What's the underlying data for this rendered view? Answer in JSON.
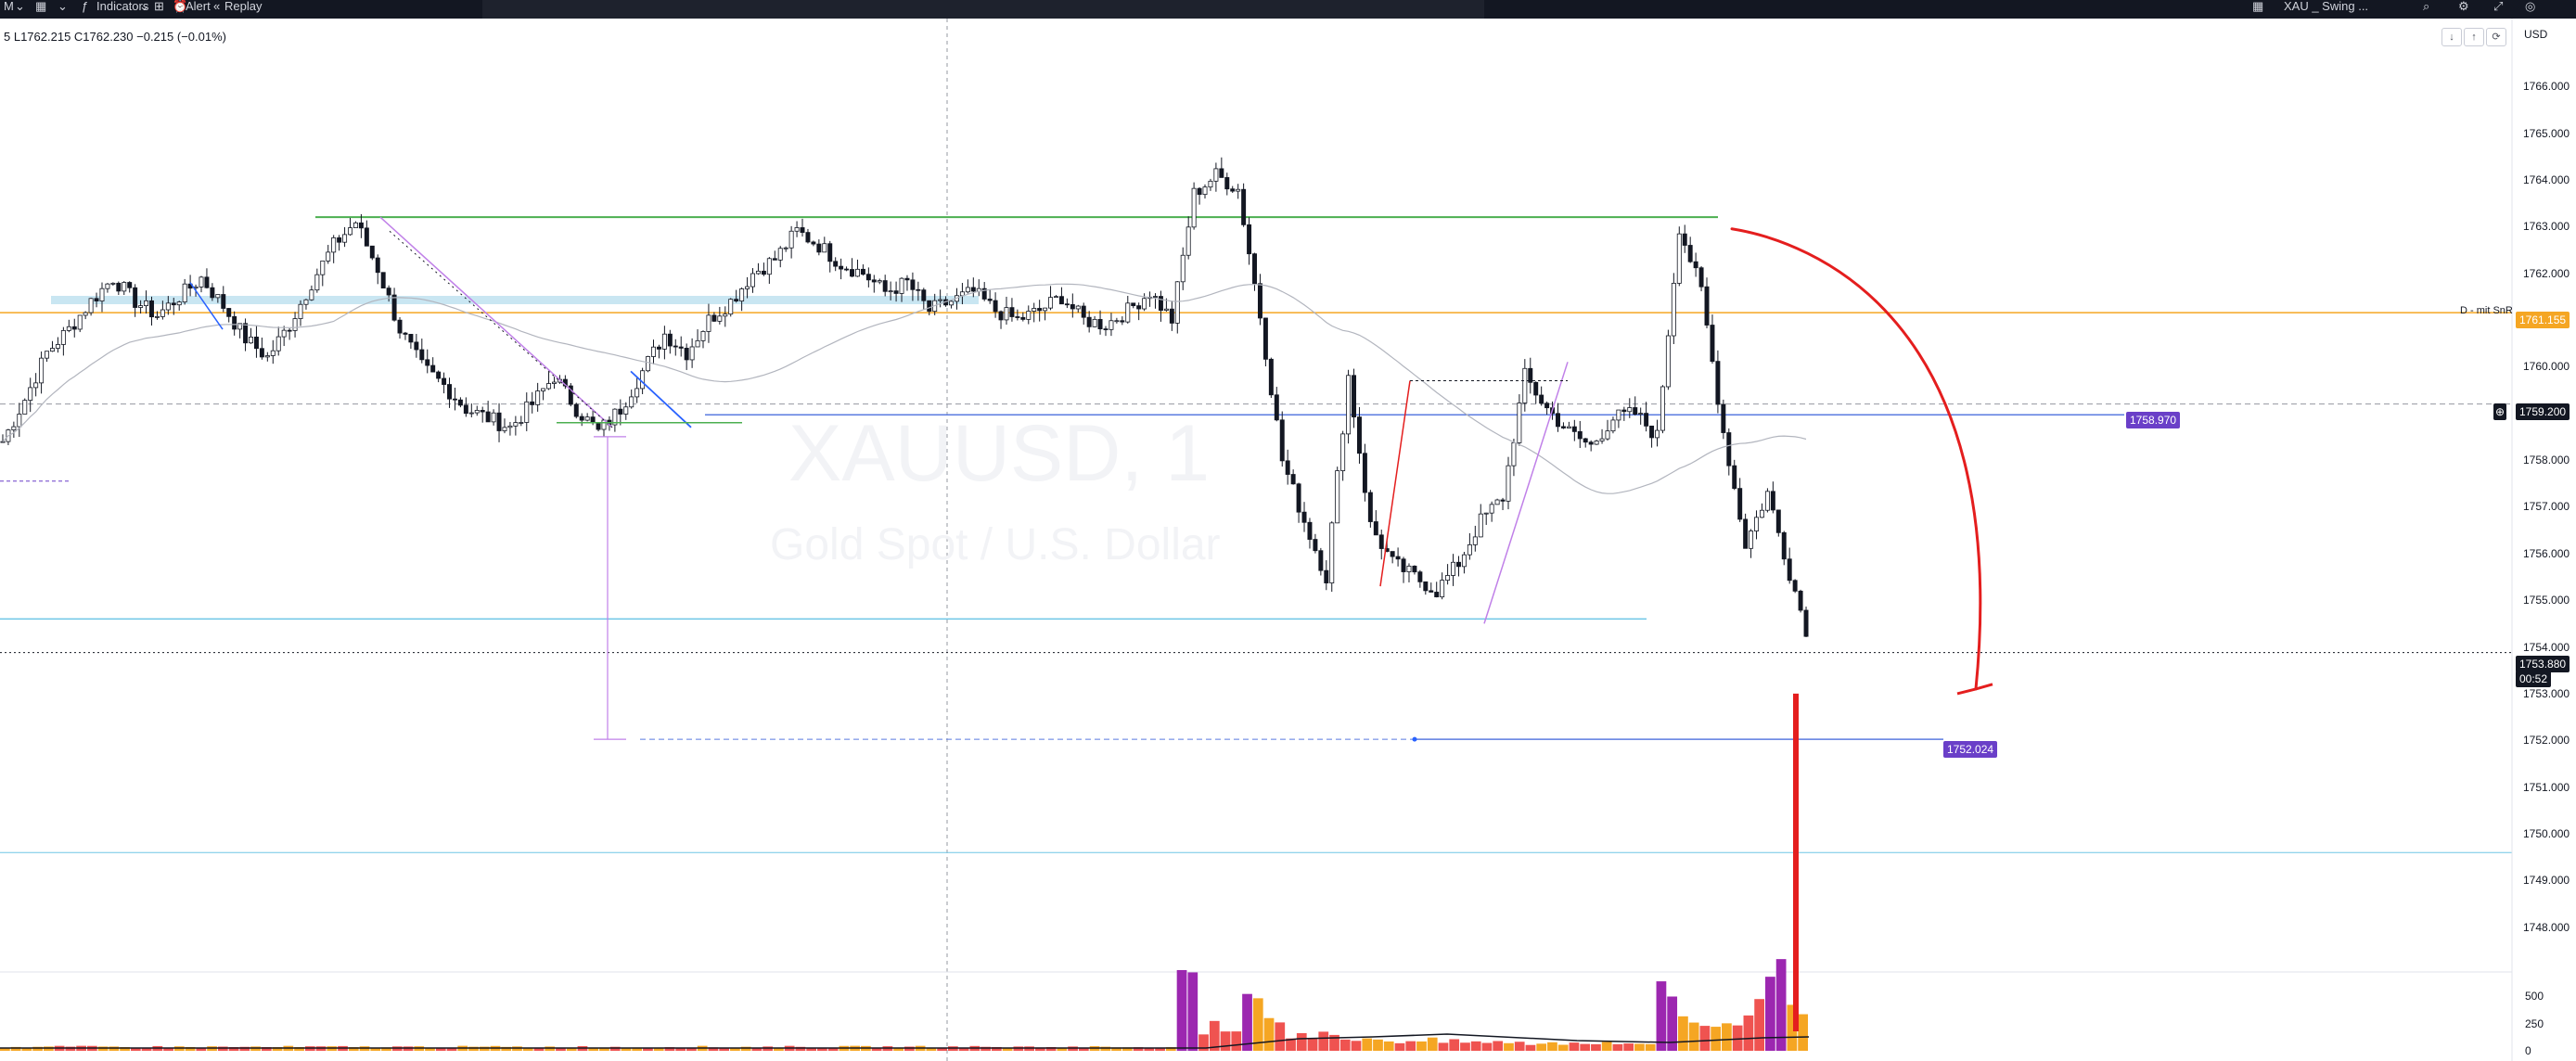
{
  "topbar": {
    "interval": "M",
    "indicators_label": "Indicators",
    "alert_label": "Alert",
    "replay_label": "Replay",
    "layout_label": "XAU _ Swing ...",
    "icons": [
      "chevron-down-icon",
      "layout-icon",
      "chevron-down-icon",
      "indicators-icon",
      "templates-icon",
      "alert-icon",
      "replay-icon",
      "cursor-icon",
      "crosshair-icon",
      "trendline-icon",
      "ray-icon",
      "arrow-icon",
      "rectangle-icon",
      "ellipse-icon",
      "brush-icon",
      "text-icon",
      "fib-icon",
      "pitchfork-icon",
      "pattern-icon",
      "measure-icon",
      "zoom-icon",
      "magnet-icon",
      "lock-icon",
      "eye-icon",
      "trash-icon",
      "search-icon",
      "settings-icon",
      "fullscreen-icon",
      "camera-icon"
    ]
  },
  "legend": {
    "text": "5  L1762.215  C1762.230  −0.215 (−0.01%)"
  },
  "watermark": {
    "symbol": "XAUUSD, 1",
    "description": "Gold Spot / U.S. Dollar"
  },
  "price_axis": {
    "currency": "USD",
    "ticks": [
      "1766.000",
      "1765.000",
      "1764.000",
      "1763.000",
      "1762.000",
      "1761.000",
      "1760.000",
      "1759.000",
      "1758.000",
      "1757.000",
      "1756.000",
      "1755.000",
      "1754.000",
      "1753.000",
      "1752.000",
      "1751.000",
      "1750.000",
      "1749.000",
      "1748.000"
    ],
    "volume_ticks": [
      "500",
      "250",
      "0"
    ]
  },
  "labels": {
    "d_level_note": "D - mit SnR",
    "d_level_price": "1761.155",
    "dashed_level_price": "1759.200",
    "blue_line_price": "1758.970",
    "target_price": "1752.024",
    "last_price": "1753.880",
    "countdown": "00:52"
  },
  "colors": {
    "up": "#131722",
    "down": "#131722",
    "green_line": "#4caf50",
    "orange_line": "#f5a623",
    "blue_line": "#5b7be0",
    "purple_tag": "#6a3fc8",
    "red_arrow": "#e41e1e",
    "highlight": "#c9e6f2"
  },
  "chart_data": {
    "type": "candlestick",
    "symbol": "XAUUSD",
    "interval": "1",
    "ylim": [
      1747.4,
      1766.4
    ],
    "levels": [
      1763.2,
      1761.155,
      1759.2,
      1758.97,
      1754.6,
      1753.88,
      1752.024,
      1749.6
    ],
    "close_path": [
      1758.4,
      1759.3,
      1760.3,
      1760.8,
      1761.4,
      1761.9,
      1761.4,
      1761.1,
      1761.5,
      1761.9,
      1761.3,
      1760.6,
      1760.2,
      1760.9,
      1761.8,
      1762.6,
      1763.1,
      1762.1,
      1760.8,
      1760.0,
      1759.6,
      1759.1,
      1758.9,
      1758.7,
      1759.2,
      1759.8,
      1759.1,
      1758.6,
      1759.1,
      1759.9,
      1760.7,
      1760.3,
      1761.0,
      1761.4,
      1762.0,
      1762.3,
      1762.9,
      1762.6,
      1762.2,
      1762.0,
      1761.6,
      1761.8,
      1761.2,
      1761.4,
      1761.6,
      1761.2,
      1761.0,
      1761.2,
      1761.5,
      1761.0,
      1760.9,
      1761.2,
      1761.6,
      1761.0,
      1763.7,
      1764.1,
      1763.8,
      1761.1,
      1758.0,
      1756.7,
      1755.5,
      1759.8,
      1756.6,
      1755.8,
      1755.5,
      1755.2,
      1755.8,
      1756.7,
      1757.2,
      1759.8,
      1759.1,
      1758.6,
      1758.3,
      1758.9,
      1759.0,
      1758.5,
      1763.0,
      1761.6,
      1758.6,
      1756.2,
      1757.3,
      1755.6,
      1754.0
    ],
    "volume": [
      30,
      30,
      30,
      30,
      30,
      30,
      30,
      30,
      30,
      30,
      30,
      30,
      30,
      30,
      30,
      30,
      30,
      30,
      30,
      30,
      30,
      30,
      30,
      30,
      30,
      30,
      30,
      30,
      30,
      30,
      30,
      30,
      30,
      30,
      30,
      30,
      30,
      30,
      30,
      30,
      30,
      30,
      30,
      30,
      30,
      30,
      30,
      30,
      30,
      30,
      30,
      30,
      30,
      30,
      520,
      180,
      120,
      480,
      260,
      140,
      120,
      110,
      100,
      90,
      80,
      80,
      70,
      70,
      70,
      60,
      60,
      60,
      60,
      70,
      70,
      60,
      430,
      260,
      200,
      240,
      330,
      560,
      380
    ]
  }
}
